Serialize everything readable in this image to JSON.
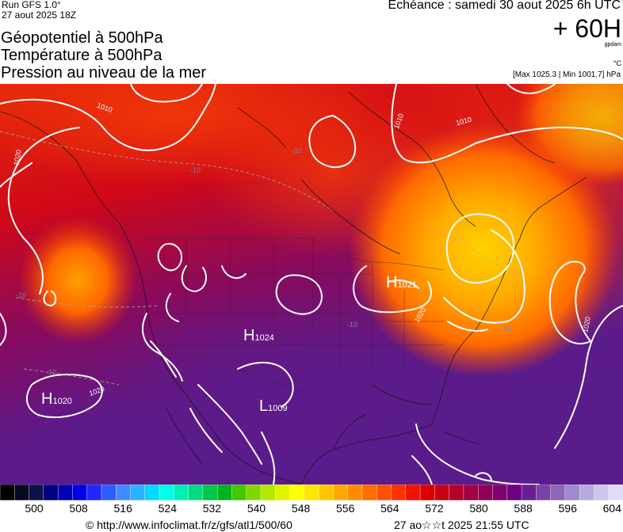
{
  "header": {
    "run": "Run GFS 1.0°",
    "run_date": "27 aout 2025 18Z",
    "titles": [
      "Géopotentiel à 500hPa",
      "Température à 500hPa",
      "Pression au niveau de la mer"
    ],
    "echeance": "Echéance : samedi 30 aout 2025 6h UTC",
    "lead": "+ 60H",
    "unit_geo": "gpdam",
    "unit_temp": "°C",
    "maxmin": "[Max 1025.3 | Min 1001.7] hPa"
  },
  "map": {
    "pressure_centers": [
      {
        "type": "H",
        "value": "1021",
        "region": "Great Lakes"
      },
      {
        "type": "H",
        "value": "1024",
        "region": "Rockies"
      },
      {
        "type": "H",
        "value": "1020",
        "region": "Pacific"
      },
      {
        "type": "L",
        "value": "1009",
        "region": "Mexico"
      }
    ],
    "isobar_labels": [
      "1010",
      "1010",
      "1010",
      "1020",
      "1020",
      "1020",
      "1020"
    ],
    "temperature_labels": [
      "-10",
      "-10",
      "-10",
      "-10",
      "-10",
      "-10"
    ]
  },
  "legend": {
    "ticks": [
      "500",
      "508",
      "516",
      "524",
      "532",
      "540",
      "548",
      "556",
      "564",
      "572",
      "580",
      "588",
      "596",
      "604"
    ],
    "colors": [
      "#000000",
      "#08081e",
      "#10104a",
      "#000080",
      "#0000b4",
      "#0000e6",
      "#1e28ff",
      "#2e5cff",
      "#3e8cff",
      "#2ab4ff",
      "#00d8ff",
      "#00ffe6",
      "#00f0b4",
      "#00dc80",
      "#00c84a",
      "#00b420",
      "#40c800",
      "#80d800",
      "#b4e800",
      "#e0f400",
      "#ffff00",
      "#ffe600",
      "#ffc800",
      "#ffaa00",
      "#ff8c00",
      "#ff6e00",
      "#ff5000",
      "#ff3200",
      "#f01400",
      "#dc0000",
      "#c80014",
      "#b4002a",
      "#a00040",
      "#900058",
      "#80006e",
      "#700084",
      "#6a1e96",
      "#7a42a8",
      "#8e66ba",
      "#a288cc",
      "#b6aade",
      "#cac6ee",
      "#e0dcf8"
    ]
  },
  "footer": {
    "url": "© http://www.infoclimat.fr/z/gfs/atl1/500/60",
    "generated": "27 ao☆☆t 2025 21:55 UTC"
  }
}
